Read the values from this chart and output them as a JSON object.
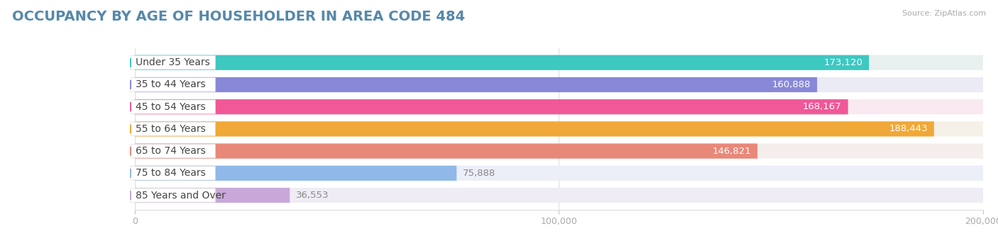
{
  "title": "OCCUPANCY BY AGE OF HOUSEHOLDER IN AREA CODE 484",
  "source": "Source: ZipAtlas.com",
  "categories": [
    "Under 35 Years",
    "35 to 44 Years",
    "45 to 54 Years",
    "55 to 64 Years",
    "65 to 74 Years",
    "75 to 84 Years",
    "85 Years and Over"
  ],
  "values": [
    173120,
    160888,
    168167,
    188443,
    146821,
    75888,
    36553
  ],
  "bar_colors": [
    "#3dc8c0",
    "#8888d8",
    "#f05898",
    "#f0a838",
    "#e88878",
    "#90b8e8",
    "#c8a8d8"
  ],
  "bar_bg_colors": [
    "#e8f0f0",
    "#ebebf5",
    "#f8eaf0",
    "#f5f0e8",
    "#f5eeec",
    "#eceef8",
    "#f0ecf5"
  ],
  "dot_colors": [
    "#3dc8c0",
    "#8888d8",
    "#f05898",
    "#f0a838",
    "#e88878",
    "#90b8e8",
    "#c8a8d8"
  ],
  "value_colors": [
    "#ffffff",
    "#ffffff",
    "#ffffff",
    "#f0a838",
    "#ffffff",
    "#808080",
    "#808080"
  ],
  "xlim_max": 200000,
  "xticks": [
    0,
    100000,
    200000
  ],
  "xticklabels": [
    "0",
    "100,000",
    "200,000"
  ],
  "title_fontsize": 14,
  "value_fontsize": 9.5,
  "label_fontsize": 10,
  "background_color": "#ffffff"
}
